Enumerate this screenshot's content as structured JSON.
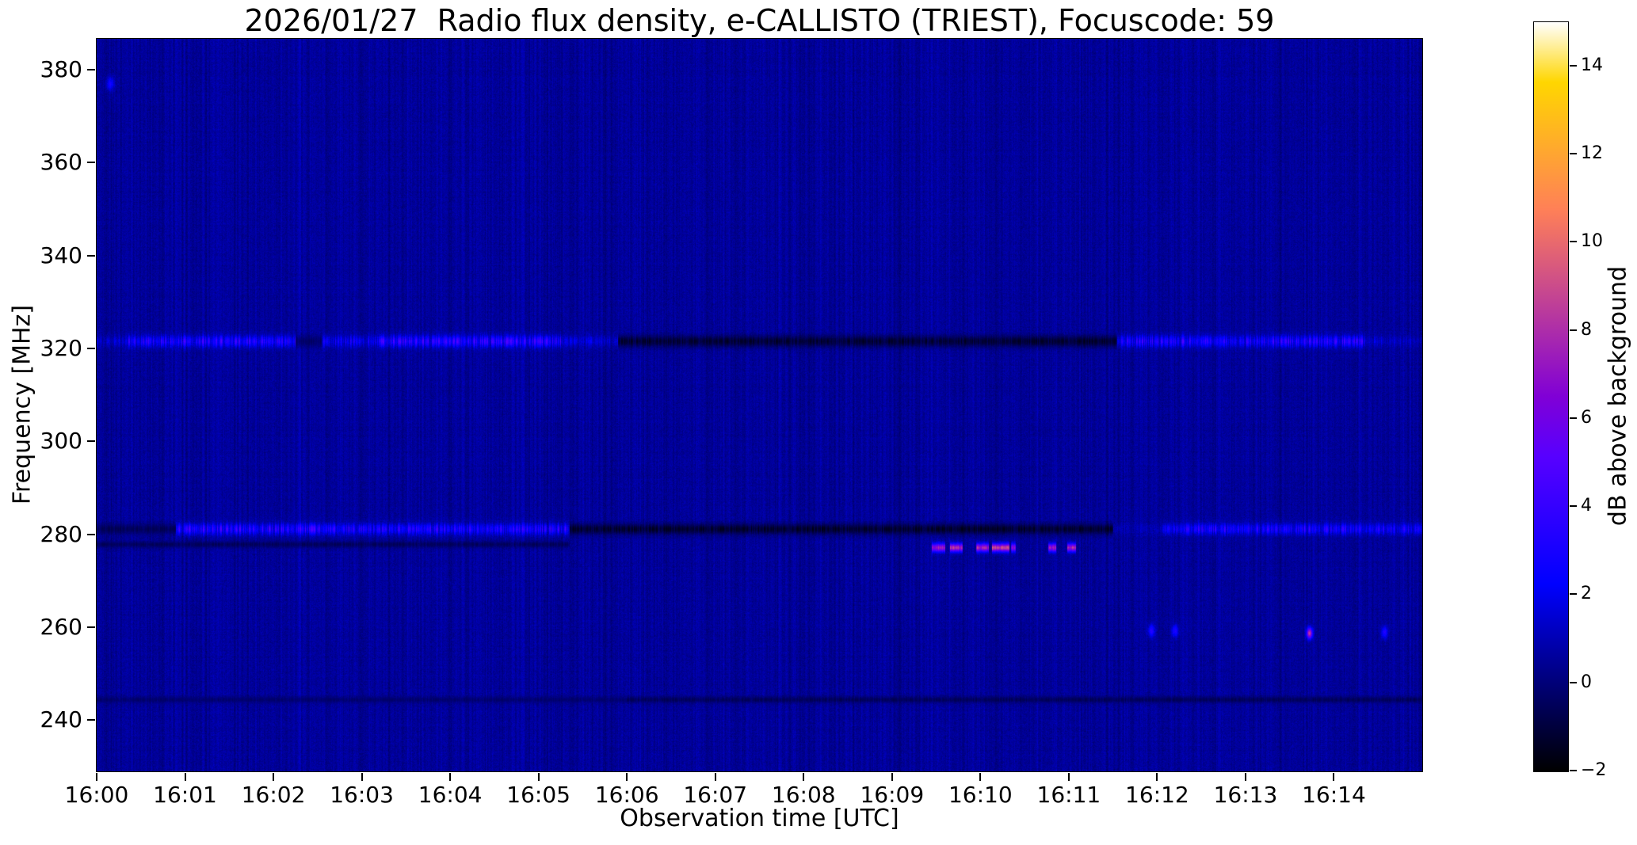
{
  "chart_data": {
    "type": "heatmap",
    "subtype": "radio-spectrogram",
    "title": "2026/01/27  Radio flux density, e-CALLISTO (TRIEST), Focuscode: 59",
    "xlabel": "Observation time [UTC]",
    "ylabel": "Frequency [MHz]",
    "grid": false,
    "x_axis": {
      "start_minute": 0,
      "end_minute": 15,
      "ticks": [
        {
          "minute": 0,
          "label": "16:00"
        },
        {
          "minute": 1,
          "label": "16:01"
        },
        {
          "minute": 2,
          "label": "16:02"
        },
        {
          "minute": 3,
          "label": "16:03"
        },
        {
          "minute": 4,
          "label": "16:04"
        },
        {
          "minute": 5,
          "label": "16:05"
        },
        {
          "minute": 6,
          "label": "16:06"
        },
        {
          "minute": 7,
          "label": "16:07"
        },
        {
          "minute": 8,
          "label": "16:08"
        },
        {
          "minute": 9,
          "label": "16:09"
        },
        {
          "minute": 10,
          "label": "16:10"
        },
        {
          "minute": 11,
          "label": "16:11"
        },
        {
          "minute": 12,
          "label": "16:12"
        },
        {
          "minute": 13,
          "label": "16:13"
        },
        {
          "minute": 14,
          "label": "16:14"
        }
      ]
    },
    "y_axis": {
      "f_min": 229.0,
      "f_max": 386.6,
      "ticks": [
        {
          "value": 380,
          "label": "380"
        },
        {
          "value": 360,
          "label": "360"
        },
        {
          "value": 340,
          "label": "340"
        },
        {
          "value": 320,
          "label": "320"
        },
        {
          "value": 300,
          "label": "300"
        },
        {
          "value": 280,
          "label": "280"
        },
        {
          "value": 260,
          "label": "260"
        },
        {
          "value": 240,
          "label": "240"
        }
      ]
    },
    "colorbar": {
      "label": "dB above background",
      "vmin": -2.0,
      "vmax": 15.0,
      "colormap": "gnuplot2",
      "ticks": [
        {
          "value": 14,
          "label": "14"
        },
        {
          "value": 12,
          "label": "12"
        },
        {
          "value": 10,
          "label": "10"
        },
        {
          "value": 8,
          "label": "8"
        },
        {
          "value": 6,
          "label": "6"
        },
        {
          "value": 4,
          "label": "4"
        },
        {
          "value": 2,
          "label": "2"
        },
        {
          "value": 0,
          "label": "0"
        },
        {
          "value": -2,
          "label": "−2"
        }
      ],
      "stops": [
        [
          0.0,
          "#000000"
        ],
        [
          0.25,
          "#0000FF"
        ],
        [
          0.42,
          "#5700FF"
        ],
        [
          0.5,
          "#8000D6"
        ],
        [
          0.75,
          "#FF8057"
        ],
        [
          0.92,
          "#FFD600"
        ],
        [
          1.0,
          "#FFFFFF"
        ]
      ]
    },
    "noise": {
      "seed": 42,
      "mean_db": 0.55,
      "column_amp_db": 0.62,
      "pixel_amp_db": 0.5,
      "row_amp_db": 0.07
    },
    "bands": [
      {
        "name": "rfi-321MHz",
        "freq_mhz": 321.6,
        "sigma_mhz": 0.85,
        "segments": [
          {
            "t0": 0.0,
            "t1": 0.35,
            "db": 0.9
          },
          {
            "t0": 0.35,
            "t1": 2.25,
            "db": 2.7
          },
          {
            "t0": 2.25,
            "t1": 2.55,
            "db": -0.5,
            "dark": true
          },
          {
            "t0": 2.55,
            "t1": 3.2,
            "db": 1.8
          },
          {
            "t0": 3.2,
            "t1": 5.25,
            "db": 3.3
          },
          {
            "t0": 5.25,
            "t1": 5.9,
            "db": 1.2
          },
          {
            "t0": 5.9,
            "t1": 11.55,
            "db": -1.6,
            "dark": true
          },
          {
            "t0": 11.55,
            "t1": 13.3,
            "db": 2.4
          },
          {
            "t0": 13.3,
            "t1": 14.35,
            "db": 3.0
          },
          {
            "t0": 14.35,
            "t1": 15.0,
            "db": 0.8
          }
        ]
      },
      {
        "name": "rfi-281MHz",
        "freq_mhz": 281.2,
        "sigma_mhz": 0.8,
        "segments": [
          {
            "t0": 0.0,
            "t1": 0.9,
            "db": -0.8,
            "dark": true
          },
          {
            "t0": 0.9,
            "t1": 2.7,
            "db": 3.0
          },
          {
            "t0": 2.7,
            "t1": 5.35,
            "db": 2.4
          },
          {
            "t0": 5.35,
            "t1": 11.5,
            "db": -1.7,
            "dark": true
          },
          {
            "t0": 11.5,
            "t1": 12.05,
            "db": 0.4
          },
          {
            "t0": 12.05,
            "t1": 15.0,
            "db": 2.3
          }
        ]
      },
      {
        "name": "rfi-278MHz-dark",
        "freq_mhz": 277.9,
        "sigma_mhz": 0.5,
        "segments": [
          {
            "t0": 0.0,
            "t1": 5.35,
            "db": -0.7,
            "dark": true
          }
        ]
      },
      {
        "name": "burst-277MHz",
        "freq_mhz": 277.2,
        "sigma_mhz": 0.6,
        "segments": [
          {
            "t0": 9.45,
            "t1": 9.6,
            "db": 6.6
          },
          {
            "t0": 9.66,
            "t1": 9.8,
            "db": 7.6
          },
          {
            "t0": 9.95,
            "t1": 10.1,
            "db": 7.1
          },
          {
            "t0": 10.13,
            "t1": 10.33,
            "db": 8.4
          },
          {
            "t0": 10.35,
            "t1": 10.4,
            "db": 5.8
          },
          {
            "t0": 10.77,
            "t1": 10.86,
            "db": 6.6
          },
          {
            "t0": 10.98,
            "t1": 11.08,
            "db": 7.2
          }
        ]
      },
      {
        "name": "rfi-245MHz-dark",
        "freq_mhz": 244.5,
        "sigma_mhz": 0.5,
        "segments": [
          {
            "t0": 0.0,
            "t1": 6.0,
            "db": -0.35,
            "dark": true
          },
          {
            "t0": 6.0,
            "t1": 15.0,
            "db": -0.75,
            "dark": true
          }
        ]
      }
    ],
    "dots": [
      {
        "t": 0.15,
        "freq_mhz": 377.0,
        "db": 2.4,
        "sigma_t": 0.03,
        "sigma_f": 1.0
      },
      {
        "t": 11.93,
        "freq_mhz": 259.3,
        "db": 2.9,
        "sigma_t": 0.025,
        "sigma_f": 0.9
      },
      {
        "t": 12.2,
        "freq_mhz": 259.3,
        "db": 2.7,
        "sigma_t": 0.025,
        "sigma_f": 0.9
      },
      {
        "t": 13.72,
        "freq_mhz": 258.8,
        "db": 8.2,
        "sigma_t": 0.022,
        "sigma_f": 0.8
      },
      {
        "t": 14.57,
        "freq_mhz": 259.0,
        "db": 2.9,
        "sigma_t": 0.025,
        "sigma_f": 0.9
      }
    ]
  }
}
